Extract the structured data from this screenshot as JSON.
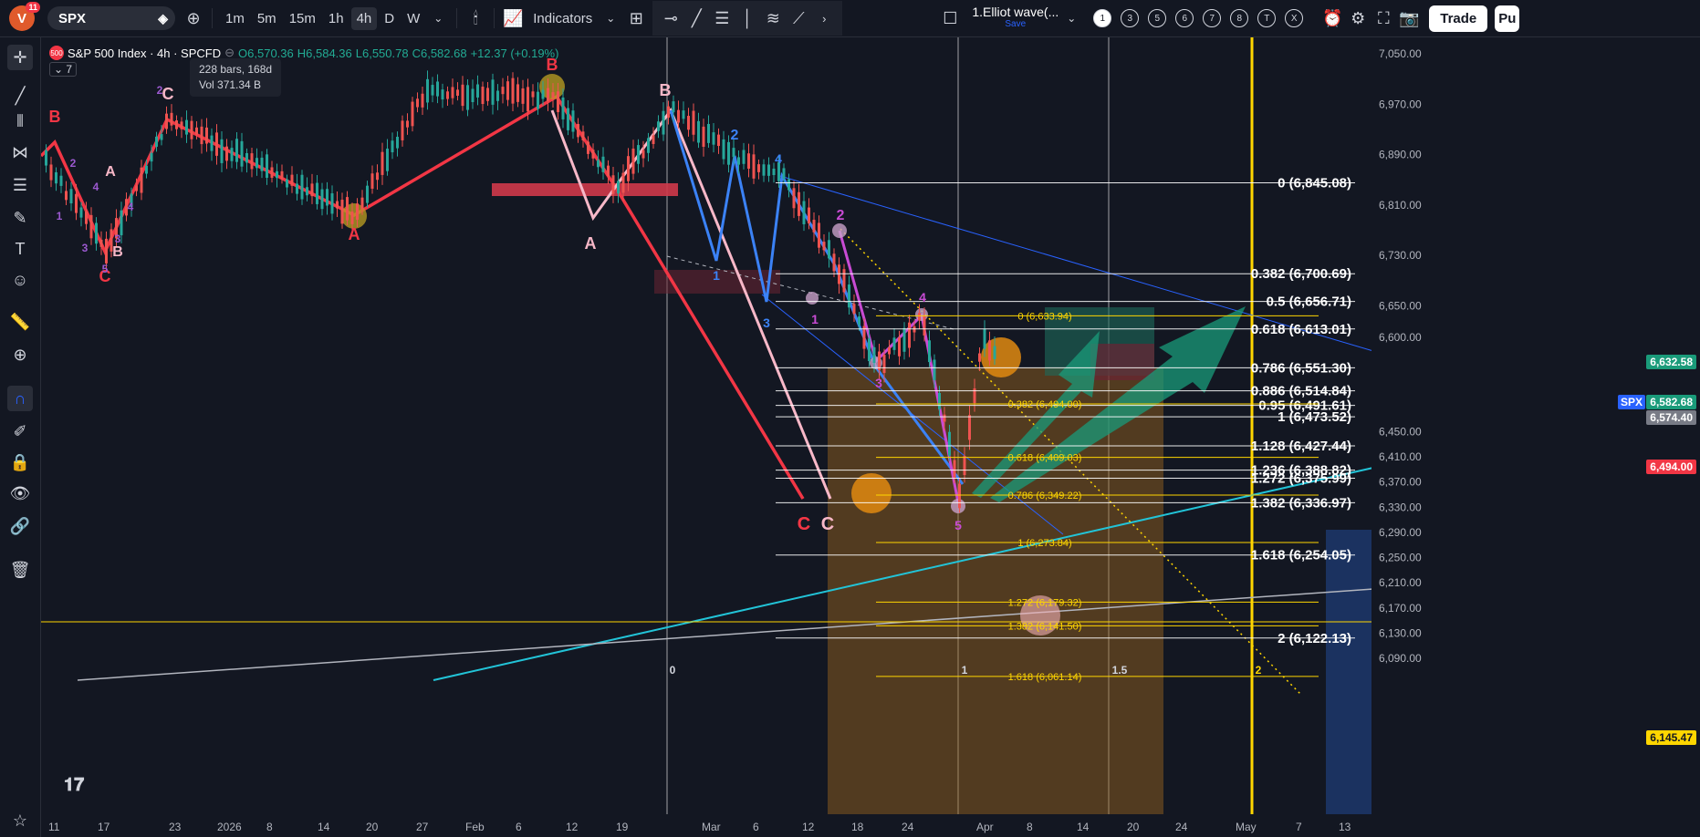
{
  "topbar": {
    "avatar_letter": "V",
    "avatar_badge": "11",
    "symbol": "SPX",
    "intervals": [
      "1m",
      "5m",
      "15m",
      "1h",
      "4h",
      "D",
      "W"
    ],
    "active_interval": "4h",
    "indicators_label": "Indicators",
    "layout_name": "1.Elliot wave(...",
    "layout_save": "Save",
    "num_buttons": [
      "1",
      "3",
      "5",
      "6",
      "7",
      "8",
      "T",
      "X"
    ],
    "trade_label": "Trade",
    "publish_label": "Pu"
  },
  "legend": {
    "title": "S&P 500 Index · 4h · SPCFD",
    "open": "O6,570.36",
    "high": "H6,584.36",
    "low": "L6,550.78",
    "close": "C6,582.68",
    "change": "+12.37 (+0.19%)",
    "collapse_count": "7"
  },
  "tooltip": {
    "bars": "228 bars, 168d",
    "vol": "Vol 371.34 B"
  },
  "price_axis": [
    "7,050.00",
    "6,970.00",
    "6,890.00",
    "6,810.00",
    "6,730.00",
    "6,650.00",
    "6,600.00",
    "6,450.00",
    "6,410.00",
    "6,370.00",
    "6,330.00",
    "6,290.00",
    "6,250.00",
    "6,210.00",
    "6,170.00",
    "6,130.00",
    "6,090.00"
  ],
  "price_tags": {
    "green": "6,632.58",
    "spx_label": "SPX",
    "spx_price": "6,582.68",
    "grey": "6,574.40",
    "red": "6,494.00",
    "yellow": "6,145.47"
  },
  "time_axis": [
    "11",
    "17",
    "23",
    "2026",
    "8",
    "14",
    "20",
    "27",
    "Feb",
    "6",
    "12",
    "19",
    "Mar",
    "6",
    "12",
    "18",
    "24",
    "Apr",
    "8",
    "14",
    "20",
    "24",
    "May",
    "7",
    "13"
  ],
  "fib_right": [
    {
      "label": "0 (6,845.08)",
      "price": 6845.08
    },
    {
      "label": "0.382 (6,700.69)",
      "price": 6700.69
    },
    {
      "label": "0.5 (6,656.71)",
      "price": 6656.71
    },
    {
      "label": "0.618 (6,613.01)",
      "price": 6613.01
    },
    {
      "label": "0.786 (6,551.30)",
      "price": 6551.3
    },
    {
      "label": "0.886 (6,514.84)",
      "price": 6514.84
    },
    {
      "label": "0.95 (6,491.61)",
      "price": 6491.61
    },
    {
      "label": "1 (6,473.52)",
      "price": 6473.52
    },
    {
      "label": "1.128 (6,427.44)",
      "price": 6427.44
    },
    {
      "label": "1.236 (6,388.82)",
      "price": 6388.82
    },
    {
      "label": "1.272 (6,375.99)",
      "price": 6375.99
    },
    {
      "label": "1.382 (6,336.97)",
      "price": 6336.97
    },
    {
      "label": "1.618 (6,254.05)",
      "price": 6254.05
    },
    {
      "label": "2 (6,122.13)",
      "price": 6122.13
    }
  ],
  "fib_small": [
    {
      "label": "0 (6,633.94)",
      "price": 6633.94
    },
    {
      "label": "0.382 (6,494.00)",
      "price": 6494.0
    },
    {
      "label": "0.618 (6,409.03)",
      "price": 6409.03
    },
    {
      "label": "0.786 (6,349.22)",
      "price": 6349.22
    },
    {
      "label": "1 (6,273.84)",
      "price": 6273.84
    },
    {
      "label": "1.272 (6,179.32)",
      "price": 6179.32
    },
    {
      "label": "1.382 (6,141.50)",
      "price": 6141.5
    },
    {
      "label": "1.618 (6,061.14)",
      "price": 6061.14
    }
  ],
  "wave_labels": [
    "B",
    "C",
    "A",
    "B",
    "C",
    "5",
    "2",
    "3",
    "4",
    "1",
    "3",
    "2",
    "4",
    "C",
    "A",
    "B",
    "B",
    "A",
    "2",
    "4",
    "1",
    "3",
    "C",
    "C",
    "2",
    "1",
    "3",
    "4",
    "5",
    "0",
    "1",
    "1.5",
    "2"
  ]
}
